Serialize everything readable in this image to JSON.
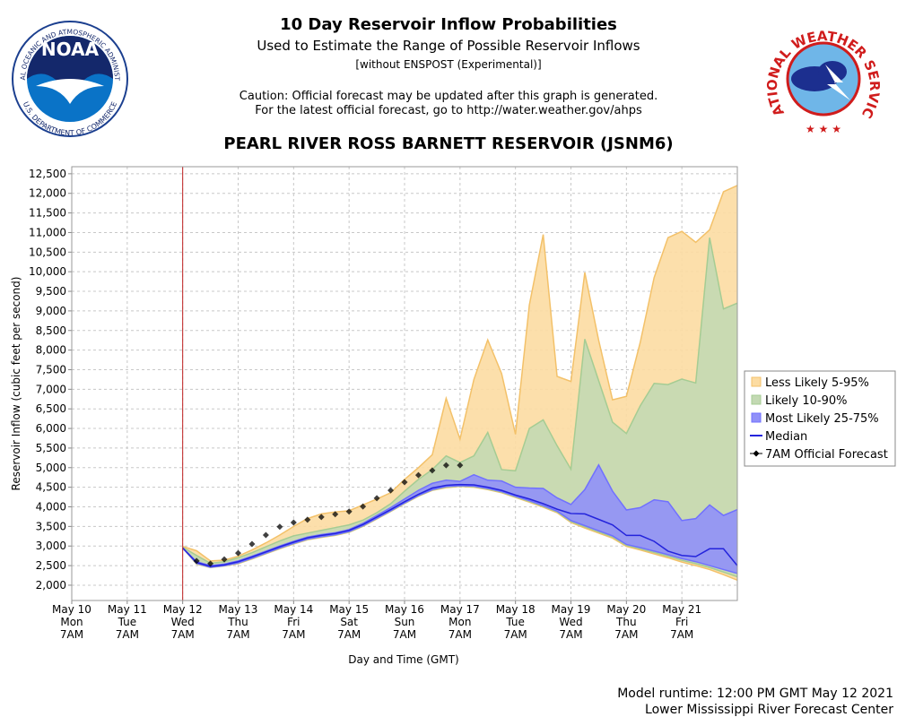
{
  "logos": {
    "noaa": "NOAA",
    "noaa_ring_top": "NATIONAL OCEANIC AND ATMOSPHERIC ADMINISTRATION",
    "noaa_ring_bottom": "U.S. DEPARTMENT OF COMMERCE",
    "nws": "NATIONAL WEATHER SERVICE"
  },
  "chart_data": {
    "type": "line",
    "title": "10 Day Reservoir Inflow Probabilities",
    "subtitle": "Used to Estimate the Range of Possible Reservoir Inflows",
    "note": "[without ENSPOST (Experimental)]",
    "caution": [
      "Caution: Official forecast may be updated after this graph is generated.",
      "For the latest official forecast, go to http://water.weather.gov/ahps"
    ],
    "location": "PEARL RIVER ROSS BARNETT RESERVOIR (JSNM6)",
    "xlabel": "Day and Time (GMT)",
    "ylabel": "Reservoir Inflow (cubic feet per second)",
    "footer": [
      "Model runtime: 12:00 PM GMT May 12 2021",
      "Lower Mississippi River Forecast Center"
    ],
    "categories": [
      "May 10",
      null,
      null,
      null,
      "May 11",
      null,
      null,
      null,
      "May 12",
      null,
      null,
      null,
      "May 13",
      null,
      null,
      null,
      "May 14",
      null,
      null,
      null,
      "May 15",
      null,
      null,
      null,
      "May 16",
      null,
      null,
      null,
      "May 17",
      null,
      null,
      null,
      "May 18",
      null,
      null,
      null,
      "May 19",
      null,
      null,
      null,
      "May 20",
      null,
      null,
      null,
      "May 21",
      null,
      null,
      null,
      null
    ],
    "x_weekdays": [
      "Mon",
      null,
      null,
      null,
      "Tue",
      null,
      null,
      null,
      "Wed",
      null,
      null,
      null,
      "Thu",
      null,
      null,
      null,
      "Fri",
      null,
      null,
      null,
      "Sat",
      null,
      null,
      null,
      "Sun",
      null,
      null,
      null,
      "Mon",
      null,
      null,
      null,
      "Tue",
      null,
      null,
      null,
      "Wed",
      null,
      null,
      null,
      "Thu",
      null,
      null,
      null,
      "Fri",
      null,
      null,
      null,
      null
    ],
    "x_times": [
      "7AM",
      null,
      null,
      null,
      "7AM",
      null,
      null,
      null,
      "7AM",
      null,
      null,
      null,
      "7AM",
      null,
      null,
      null,
      "7AM",
      null,
      null,
      null,
      "7AM",
      null,
      null,
      null,
      "7AM",
      null,
      null,
      null,
      "7AM",
      null,
      null,
      null,
      "7AM",
      null,
      null,
      null,
      "7AM",
      null,
      null,
      null,
      "7AM",
      null,
      null,
      null,
      "7AM",
      null,
      null,
      null,
      null
    ],
    "ylim": [
      1610,
      12680
    ],
    "yticks": [
      {
        "value": 2000,
        "label": "2,000"
      },
      {
        "value": 2500,
        "label": "2,500"
      },
      {
        "value": 3000,
        "label": "3,000"
      },
      {
        "value": 3500,
        "label": "3,500"
      },
      {
        "value": 4000,
        "label": "4,000"
      },
      {
        "value": 4500,
        "label": "4,500"
      },
      {
        "value": 5000,
        "label": "5,000"
      },
      {
        "value": 5500,
        "label": "5,500"
      },
      {
        "value": 6000,
        "label": "6,000"
      },
      {
        "value": 6500,
        "label": "6,500"
      },
      {
        "value": 7000,
        "label": "7,000"
      },
      {
        "value": 7500,
        "label": "7,500"
      },
      {
        "value": 8000,
        "label": "8,000"
      },
      {
        "value": 8500,
        "label": "8,500"
      },
      {
        "value": 9000,
        "label": "9,000"
      },
      {
        "value": 9500,
        "label": "9,500"
      },
      {
        "value": 10000,
        "label": "10,000"
      },
      {
        "value": 10500,
        "label": "10,500"
      },
      {
        "value": 11000,
        "label": "11,000"
      },
      {
        "value": 11500,
        "label": "11,500"
      },
      {
        "value": 12000,
        "label": "12,000"
      },
      {
        "value": 12500,
        "label": "12,500"
      }
    ],
    "grid": true,
    "legend": "right",
    "series": [
      {
        "name": "Less Likely 5-95%",
        "kind": "band",
        "color": "#fcdca2",
        "line_color": "#f3c169",
        "low": [
          null,
          null,
          null,
          null,
          null,
          null,
          null,
          null,
          2950,
          2540,
          2450,
          2490,
          2550,
          2670,
          2800,
          2930,
          3050,
          3160,
          3220,
          3270,
          3350,
          3500,
          3690,
          3880,
          4080,
          4270,
          4420,
          4490,
          4520,
          4500,
          4440,
          4360,
          4240,
          4120,
          3990,
          3850,
          3600,
          3460,
          3330,
          3200,
          2990,
          2900,
          2800,
          2700,
          2590,
          2500,
          2400,
          2270,
          2130
        ],
        "high": [
          null,
          null,
          null,
          null,
          null,
          null,
          null,
          null,
          2990,
          2880,
          2620,
          2640,
          2740,
          2900,
          3080,
          3280,
          3500,
          3700,
          3820,
          3870,
          3900,
          4050,
          4200,
          4360,
          4700,
          5000,
          5330,
          6770,
          5730,
          7250,
          8260,
          7400,
          5850,
          9150,
          10950,
          7330,
          7200,
          9980,
          8250,
          6730,
          6820,
          8200,
          9850,
          10870,
          11030,
          10750,
          11070,
          12040,
          12200
        ]
      },
      {
        "name": "Likely 10-90%",
        "kind": "band",
        "color": "#c3d9b3",
        "line_color": "#a5cc93",
        "low": [
          null,
          null,
          null,
          null,
          null,
          null,
          null,
          null,
          2950,
          2550,
          2455,
          2495,
          2560,
          2680,
          2810,
          2940,
          3060,
          3170,
          3230,
          3280,
          3360,
          3510,
          3700,
          3890,
          4090,
          4280,
          4430,
          4505,
          4530,
          4515,
          4455,
          4375,
          4255,
          4140,
          4010,
          3870,
          3625,
          3490,
          3360,
          3230,
          3015,
          2930,
          2835,
          2740,
          2635,
          2550,
          2450,
          2335,
          2215
        ],
        "high": [
          null,
          null,
          null,
          null,
          null,
          null,
          null,
          null,
          2970,
          2760,
          2560,
          2600,
          2700,
          2830,
          2980,
          3130,
          3260,
          3330,
          3400,
          3470,
          3540,
          3660,
          3850,
          4080,
          4400,
          4700,
          4950,
          5300,
          5130,
          5300,
          5900,
          4950,
          4920,
          6000,
          6220,
          5560,
          4960,
          8280,
          7220,
          6160,
          5870,
          6580,
          7150,
          7120,
          7260,
          7160,
          10870,
          9050,
          9200
        ]
      },
      {
        "name": "Most Likely 25-75%",
        "kind": "band",
        "color": "#9090f8",
        "line_color": "#7070ff",
        "low": [
          null,
          null,
          null,
          null,
          null,
          null,
          null,
          null,
          2950,
          2560,
          2460,
          2500,
          2570,
          2690,
          2820,
          2950,
          3070,
          3180,
          3240,
          3290,
          3370,
          3520,
          3710,
          3900,
          4100,
          4290,
          4440,
          4520,
          4540,
          4530,
          4470,
          4390,
          4270,
          4160,
          4030,
          3890,
          3650,
          3520,
          3390,
          3260,
          3040,
          2960,
          2870,
          2780,
          2680,
          2600,
          2500,
          2400,
          2300
        ],
        "high": [
          null,
          null,
          null,
          null,
          null,
          null,
          null,
          null,
          2950,
          2600,
          2500,
          2540,
          2620,
          2740,
          2870,
          3000,
          3120,
          3230,
          3290,
          3340,
          3420,
          3580,
          3780,
          3980,
          4200,
          4420,
          4600,
          4680,
          4650,
          4820,
          4680,
          4660,
          4500,
          4480,
          4470,
          4230,
          4060,
          4440,
          5070,
          4400,
          3920,
          3980,
          4180,
          4130,
          3650,
          3700,
          4050,
          3780,
          3930
        ]
      },
      {
        "name": "Median",
        "kind": "line",
        "color": "#2424dc",
        "values": [
          null,
          null,
          null,
          null,
          null,
          null,
          null,
          null,
          2950,
          2580,
          2480,
          2520,
          2600,
          2720,
          2850,
          2980,
          3100,
          3210,
          3270,
          3320,
          3400,
          3550,
          3740,
          3930,
          4130,
          4320,
          4480,
          4550,
          4570,
          4560,
          4500,
          4420,
          4300,
          4200,
          4080,
          3940,
          3830,
          3820,
          3680,
          3540,
          3270,
          3270,
          3120,
          2870,
          2760,
          2730,
          2930,
          2930,
          2500
        ]
      },
      {
        "name": "7AM Official Forecast",
        "kind": "points",
        "color": "#000000",
        "values": [
          null,
          null,
          null,
          null,
          null,
          null,
          null,
          null,
          null,
          2620,
          2550,
          2660,
          2820,
          3050,
          3280,
          3490,
          3600,
          3670,
          3740,
          3810,
          3880,
          4010,
          4220,
          4420,
          4630,
          4810,
          4930,
          5060,
          5060,
          null,
          null,
          null,
          null,
          null,
          null,
          null,
          null,
          null,
          null,
          null,
          null,
          null,
          null,
          null,
          null,
          null,
          null,
          null,
          null
        ]
      }
    ]
  }
}
